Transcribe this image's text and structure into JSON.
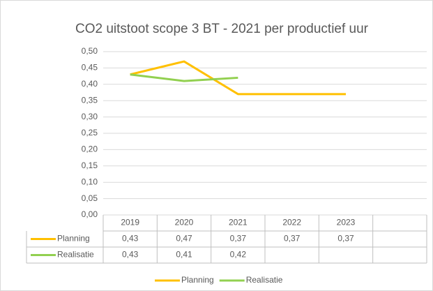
{
  "chart_data": {
    "type": "line",
    "title": "CO2 uitstoot scope 3 BT  - 2021 per productief uur",
    "categories": [
      "2019",
      "2020",
      "2021",
      "2022",
      "2023",
      null
    ],
    "series": [
      {
        "name": "Planning",
        "color": "#ffc000",
        "values": [
          0.43,
          0.47,
          0.37,
          0.37,
          0.37,
          null
        ],
        "value_labels": [
          "0,43",
          "0,47",
          "0,37",
          "0,37",
          "0,37",
          null
        ]
      },
      {
        "name": "Realisatie",
        "color": "#92d050",
        "values": [
          0.43,
          0.41,
          0.42,
          null,
          null,
          null
        ],
        "value_labels": [
          "0,43",
          "0,41",
          "0,42",
          null,
          null,
          null
        ]
      }
    ],
    "ylim": [
      0,
      0.5
    ],
    "yticks": [
      {
        "value": 0,
        "label": "0,00"
      },
      {
        "value": 0.05,
        "label": "0,05"
      },
      {
        "value": 0.1,
        "label": "0,10"
      },
      {
        "value": 0.15,
        "label": "0,15"
      },
      {
        "value": 0.2,
        "label": "0,20"
      },
      {
        "value": 0.25,
        "label": "0,25"
      },
      {
        "value": 0.3,
        "label": "0,30"
      },
      {
        "value": 0.35,
        "label": "0,35"
      },
      {
        "value": 0.4,
        "label": "0,40"
      },
      {
        "value": 0.45,
        "label": "0,45"
      },
      {
        "value": 0.5,
        "label": "0,50"
      }
    ],
    "grid": true,
    "legend": "bottom",
    "data_table": true
  }
}
